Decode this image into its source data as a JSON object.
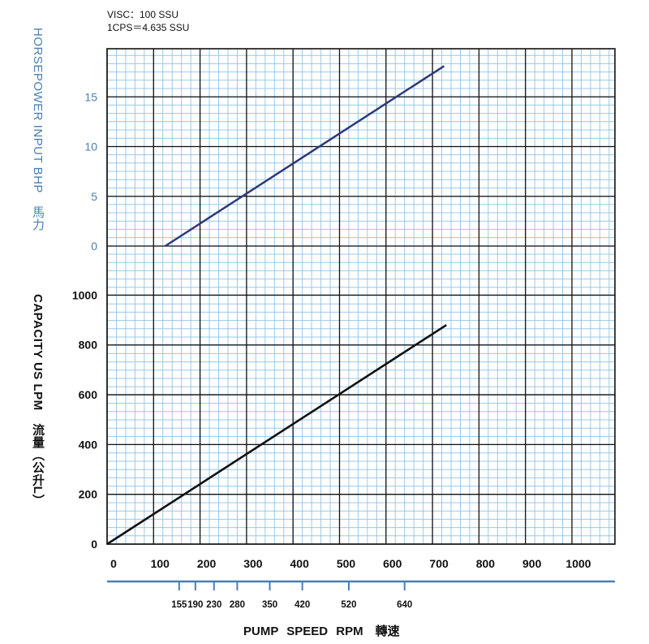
{
  "notes": {
    "visc": "VISC：100 SSU",
    "cps": "1CPS＝4.635 SSU"
  },
  "labels": {
    "hp_axis": "HORSEPOWER INPUT BHP　馬力",
    "capacity_axis": "CAPACITY US LPM　流量（公升L）",
    "x_axis": "PUMP SPEED RPM　轉速"
  },
  "colors": {
    "grid_minor": "#9cc8e6",
    "grid_major": "#111111",
    "hp_line": "#2b3a7a",
    "capacity_line": "#111111",
    "hp_tick_text": "#4a7fb3",
    "pump_axis": "#4a7fb3"
  },
  "chart_data": [
    {
      "type": "line",
      "name": "horsepower",
      "ylabel": "HORSEPOWER INPUT BHP　馬力",
      "ylim": [
        0,
        20
      ],
      "yticks": [
        "0",
        "5",
        "10",
        "15"
      ],
      "series": [
        {
          "x": [
            125,
            725
          ],
          "y": [
            0,
            18.1
          ]
        }
      ]
    },
    {
      "type": "line",
      "name": "capacity",
      "xlabel": "PUMP SPEED RPM　轉速",
      "ylabel": "CAPACITY US LPM　流量（公升L）",
      "xlim": [
        0,
        1080
      ],
      "ylim": [
        0,
        1000
      ],
      "xticks": [
        "0",
        "100",
        "200",
        "300",
        "400",
        "500",
        "600",
        "700",
        "800",
        "900",
        "1000"
      ],
      "yticks": [
        "0",
        "200",
        "400",
        "600",
        "800",
        "1000"
      ],
      "series": [
        {
          "x": [
            0,
            730
          ],
          "y": [
            0,
            880
          ]
        }
      ]
    }
  ],
  "pump_speed_ticks": [
    "155",
    "190",
    "230",
    "280",
    "350",
    "420",
    "520",
    "640"
  ]
}
